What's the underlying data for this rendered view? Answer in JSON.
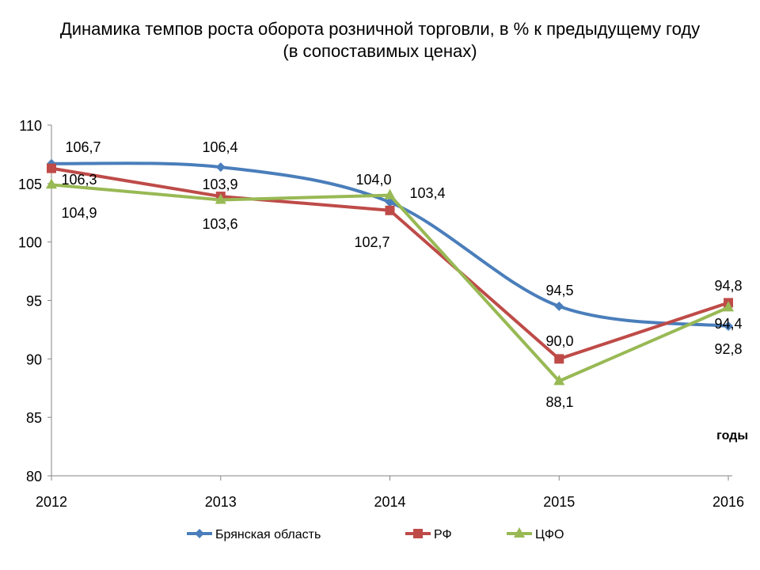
{
  "chart_data": {
    "type": "line",
    "title": "Динамика темпов роста оборота розничной торговли, в % к предыдущему году",
    "subtitle": "(в сопоставимых ценах)",
    "xlabel": "годы",
    "ylabel": "",
    "x": [
      "2012",
      "2013",
      "2014",
      "2015",
      "2016"
    ],
    "yticks": [
      "80",
      "85",
      "90",
      "95",
      "100",
      "105",
      "110"
    ],
    "ylim": [
      80,
      110
    ],
    "grid": false,
    "legend_position": "bottom",
    "series": [
      {
        "name": "Брянская область",
        "color": "#4A7EBB",
        "marker": "diamond",
        "smooth": true,
        "values": [
          106.7,
          106.4,
          103.4,
          94.5,
          92.8
        ],
        "labels": [
          "106,7",
          "106,4",
          "103,4",
          "94,5",
          "92,8"
        ]
      },
      {
        "name": "РФ",
        "color": "#BE4B48",
        "marker": "square",
        "smooth": false,
        "values": [
          106.3,
          103.9,
          102.7,
          90.0,
          94.8
        ],
        "labels": [
          "106,3",
          "103,9",
          "102,7",
          "90,0",
          "94,8"
        ]
      },
      {
        "name": "ЦФО",
        "color": "#98B954",
        "marker": "triangle",
        "smooth": false,
        "values": [
          104.9,
          103.6,
          104.0,
          88.1,
          94.4
        ],
        "labels": [
          "104,9",
          "103,6",
          "104,0",
          "88,1",
          "94,4"
        ]
      }
    ]
  }
}
